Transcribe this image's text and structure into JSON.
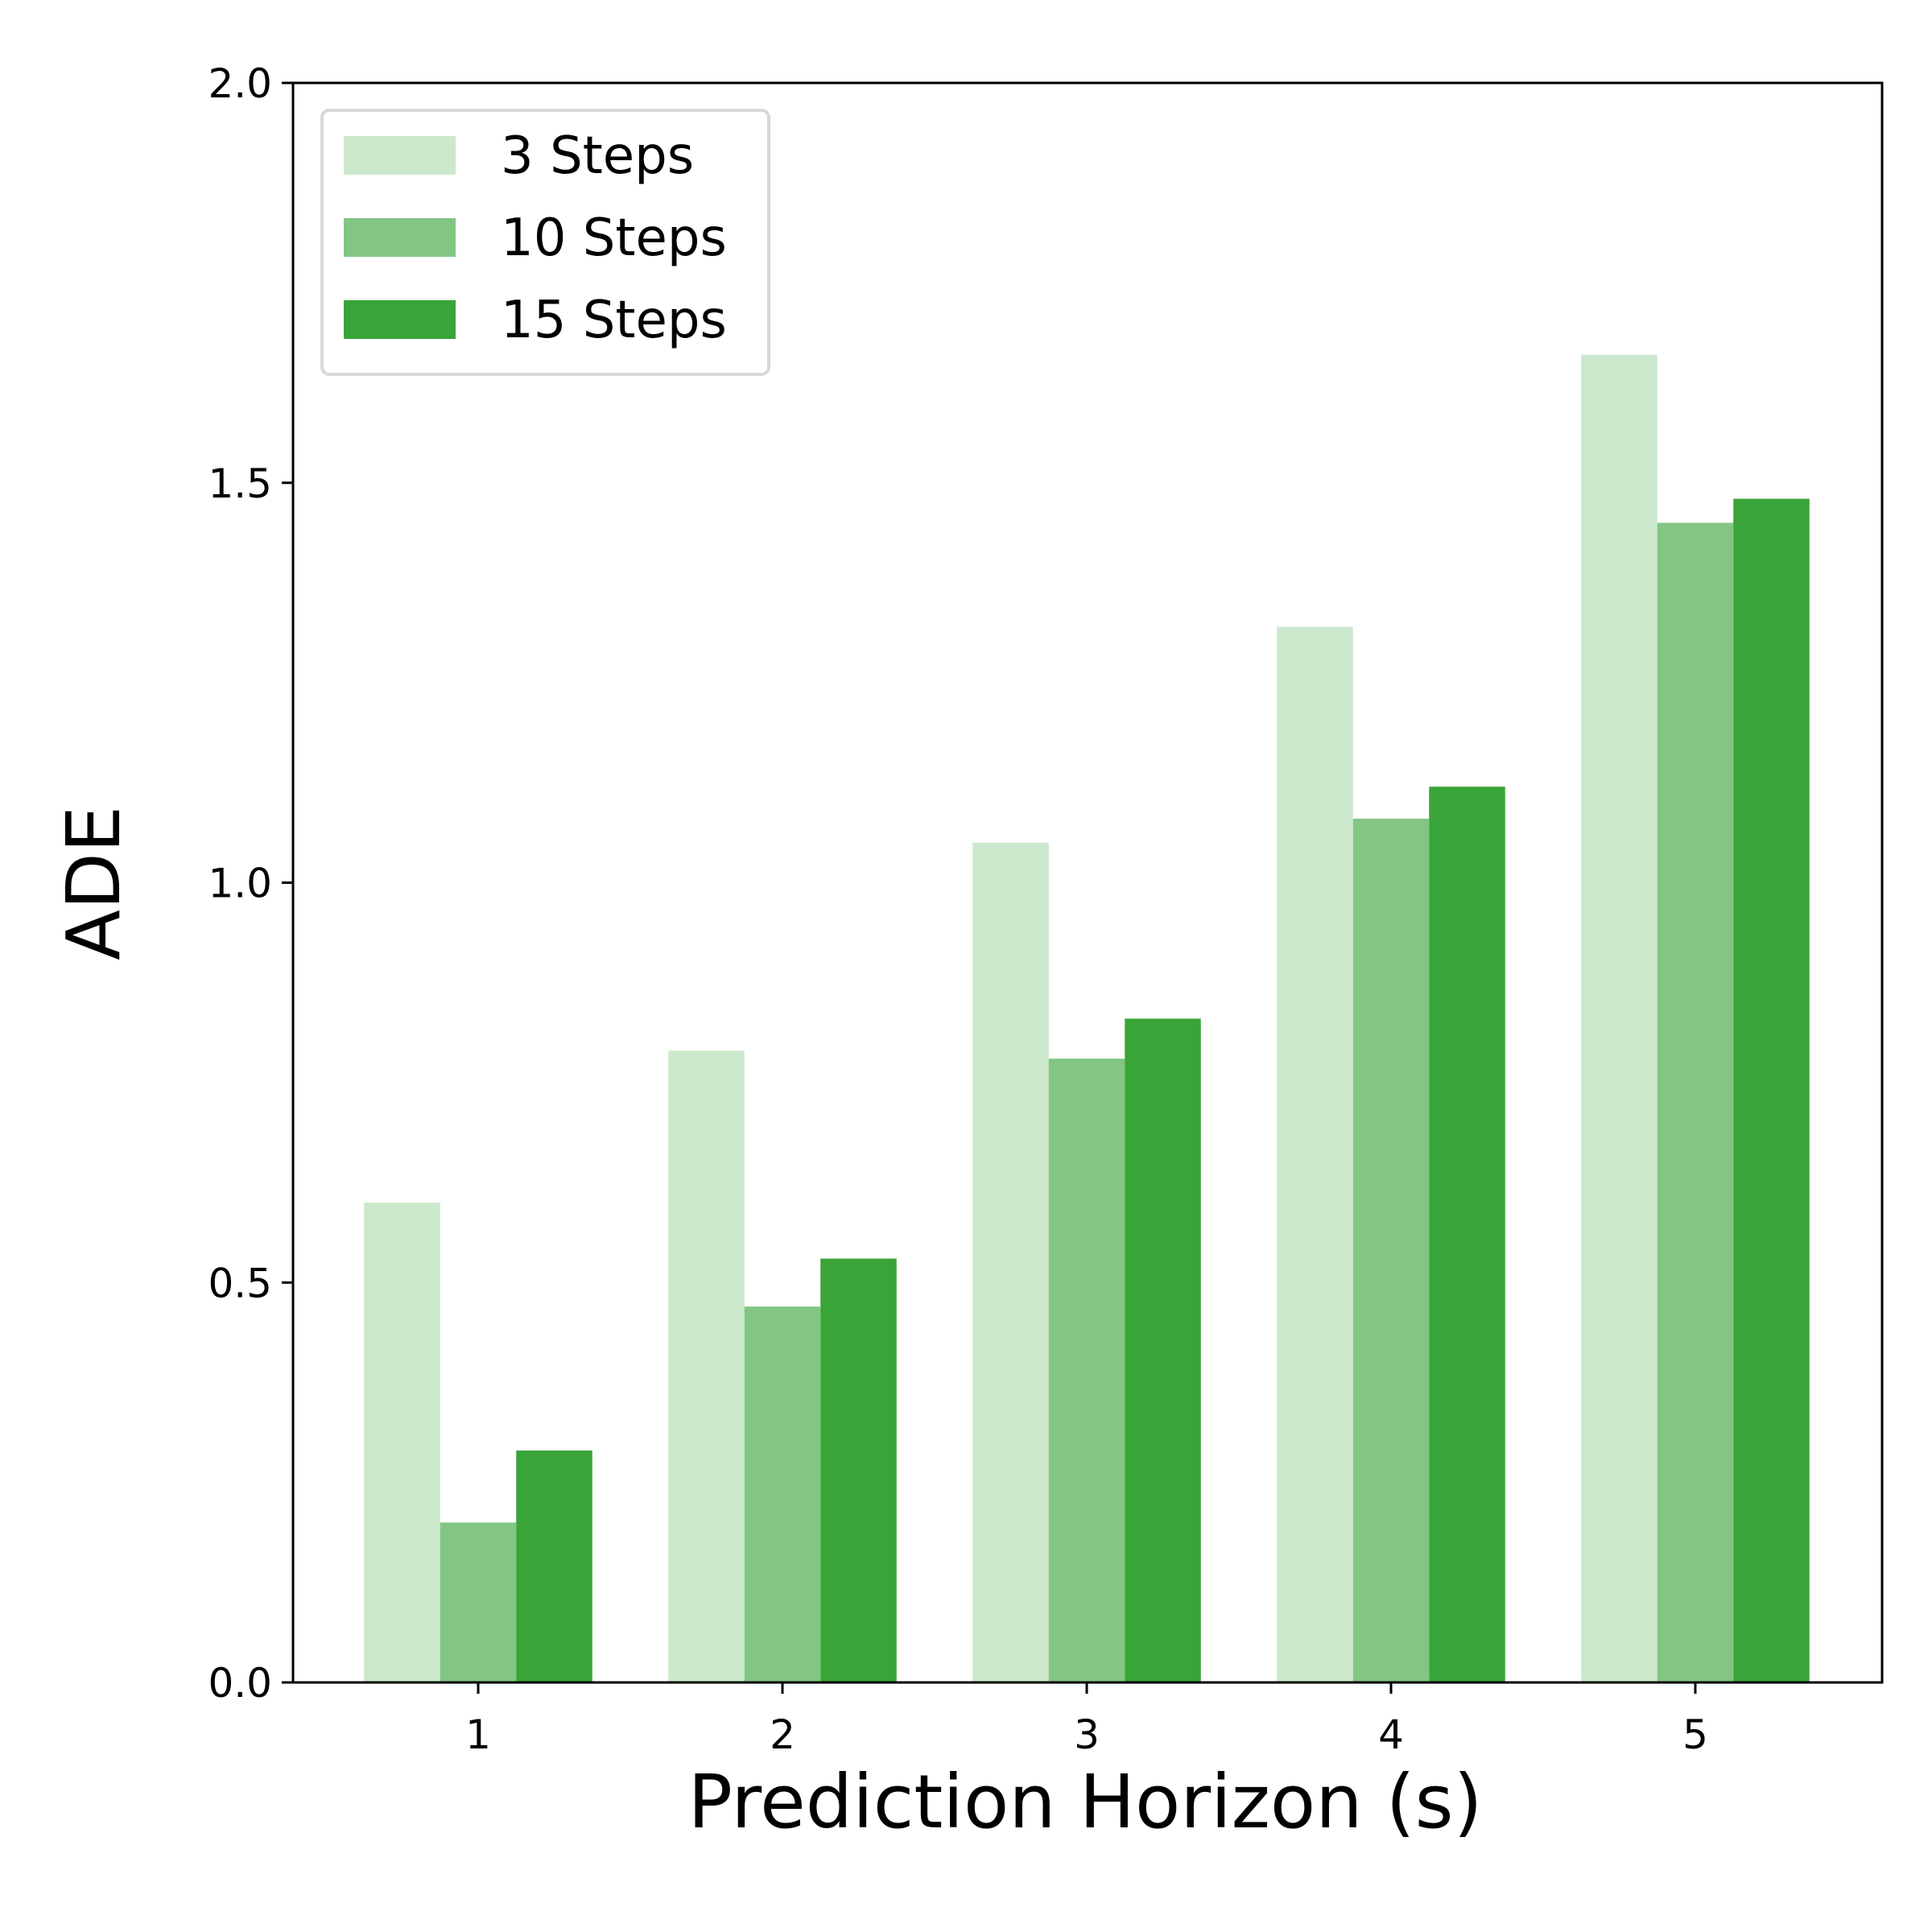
{
  "chart_data": {
    "type": "bar",
    "title": "",
    "xlabel": "Prediction Horizon (s)",
    "ylabel": "ADE",
    "categories": [
      "1",
      "2",
      "3",
      "4",
      "5"
    ],
    "ylim": [
      0,
      2
    ],
    "yticks": [
      "0.0",
      "0.5",
      "1.0",
      "1.5",
      "2.0"
    ],
    "grid": false,
    "legend_position": "top-left",
    "series": [
      {
        "name": "3 Steps",
        "color": "#cce8cc",
        "values": [
          0.6,
          0.79,
          1.05,
          1.32,
          1.66
        ]
      },
      {
        "name": "10 Steps",
        "color": "#83c684",
        "values": [
          0.2,
          0.47,
          0.78,
          1.08,
          1.45
        ]
      },
      {
        "name": "15 Steps",
        "color": "#39a437",
        "values": [
          0.29,
          0.53,
          0.83,
          1.12,
          1.48
        ]
      }
    ]
  }
}
